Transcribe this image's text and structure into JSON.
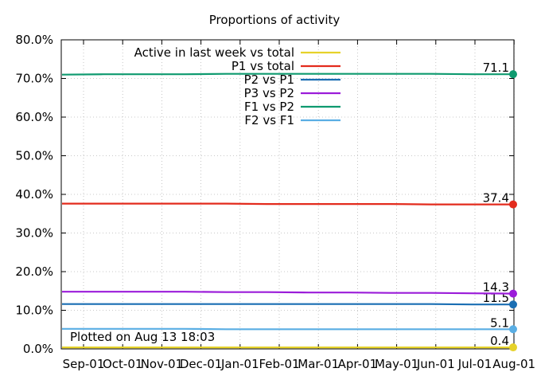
{
  "chart_data": {
    "type": "line",
    "title": "Proportions of activity",
    "ylim": [
      0,
      80
    ],
    "yticks": [
      "0.0%",
      "10.0%",
      "20.0%",
      "30.0%",
      "40.0%",
      "50.0%",
      "60.0%",
      "70.0%",
      "80.0%"
    ],
    "ytick_values": [
      0,
      10,
      20,
      30,
      40,
      50,
      60,
      70,
      80
    ],
    "categories": [
      "Sep-01",
      "Oct-01",
      "Nov-01",
      "Dec-01",
      "Jan-01",
      "Feb-01",
      "Mar-01",
      "Apr-01",
      "May-01",
      "Jun-01",
      "Jul-01",
      "Aug-01"
    ],
    "grid": true,
    "legend_position": "top-right",
    "annotation": "Plotted on Aug 13 18:03",
    "series": [
      {
        "name": "Active in last week vs total",
        "color": "#e6d22a",
        "values": [
          0.4,
          0.4,
          0.4,
          0.4,
          0.4,
          0.4,
          0.4,
          0.4,
          0.4,
          0.4,
          0.4,
          0.4
        ],
        "end_label": "0.4"
      },
      {
        "name": "P1 vs total",
        "color": "#e32b1d",
        "values": [
          37.6,
          37.6,
          37.6,
          37.6,
          37.6,
          37.5,
          37.5,
          37.5,
          37.5,
          37.4,
          37.4,
          37.4
        ],
        "end_label": "37.4"
      },
      {
        "name": "P2 vs P1",
        "color": "#1a6eb3",
        "values": [
          11.6,
          11.6,
          11.6,
          11.6,
          11.6,
          11.6,
          11.6,
          11.6,
          11.6,
          11.6,
          11.5,
          11.5
        ],
        "end_label": "11.5"
      },
      {
        "name": "P3 vs P2",
        "color": "#9b1cd9",
        "values": [
          14.8,
          14.8,
          14.8,
          14.8,
          14.7,
          14.7,
          14.6,
          14.6,
          14.5,
          14.5,
          14.4,
          14.3
        ],
        "end_label": "14.3"
      },
      {
        "name": "F1 vs P2",
        "color": "#0e9a6f",
        "values": [
          71.0,
          71.1,
          71.1,
          71.1,
          71.2,
          71.2,
          71.2,
          71.2,
          71.2,
          71.2,
          71.1,
          71.1
        ],
        "end_label": "71.1"
      },
      {
        "name": "F2 vs F1",
        "color": "#5aaee4",
        "values": [
          5.2,
          5.2,
          5.2,
          5.2,
          5.1,
          5.1,
          5.1,
          5.1,
          5.1,
          5.1,
          5.1,
          5.1
        ],
        "end_label": "5.1"
      }
    ]
  }
}
